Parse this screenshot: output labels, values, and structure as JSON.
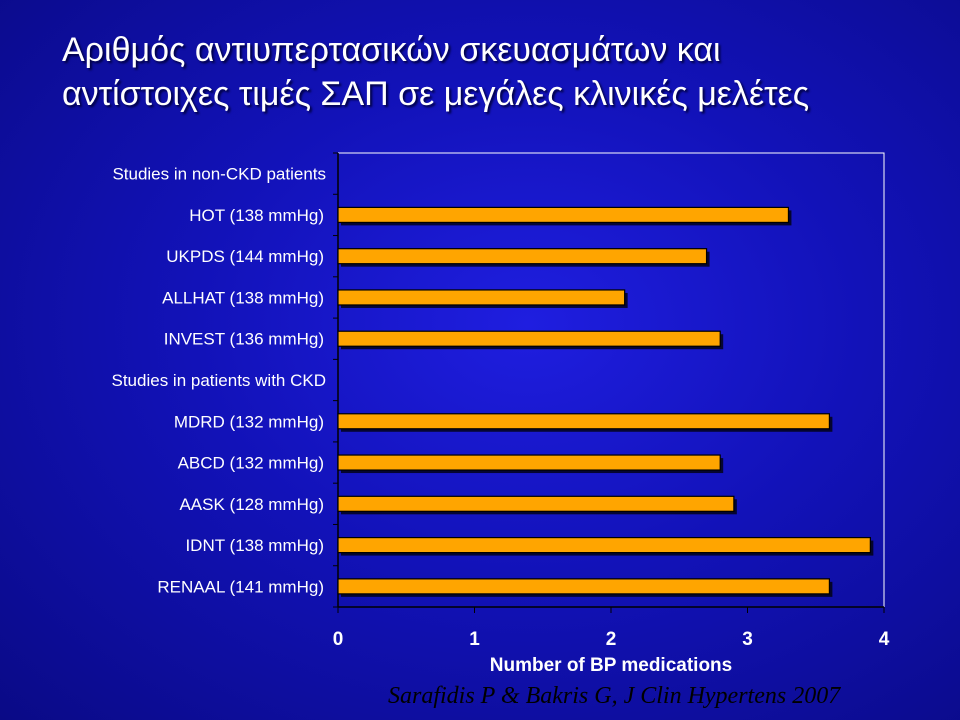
{
  "title": {
    "line1": "Αριθμός αντιυπερτασικών σκευασμάτων και",
    "line2": "αντίστοιχες τιμές ΣΑΠ σε μεγάλες κλινικές μελέτες"
  },
  "citation": "Sarafidis P & Bakris G, J Clin Hypertens 2007",
  "colors": {
    "background": "#1515c8",
    "bar": "#ffa500",
    "bar_edge": "#000000",
    "text": "#ffffff"
  },
  "chart_data": {
    "type": "bar",
    "orientation": "horizontal",
    "categories": [
      "Studies in non-CKD patients",
      "HOT (138 mmHg)",
      "UKPDS (144 mmHg)",
      "ALLHAT (138 mmHg)",
      "INVEST (136 mmHg)",
      "Studies in patients with CKD",
      "MDRD (132 mmHg)",
      "ABCD (132 mmHg)",
      "AASK (128 mmHg)",
      "IDNT (138 mmHg)",
      "RENAAL (141 mmHg)"
    ],
    "values": [
      null,
      3.3,
      2.7,
      2.1,
      2.8,
      null,
      3.6,
      2.8,
      2.9,
      3.9,
      3.6
    ],
    "xlabel": "Number of BP medications",
    "ylabel": "",
    "xlim": [
      0,
      4
    ],
    "xticks": [
      "0",
      "1",
      "2",
      "3",
      "4"
    ],
    "grid": false,
    "legend": "none"
  }
}
